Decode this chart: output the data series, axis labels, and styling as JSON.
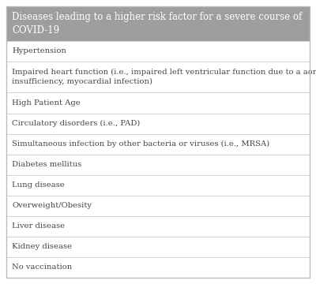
{
  "title": "Diseases leading to a higher risk factor for a severe course of\nCOVID-19",
  "title_bg": "#9e9e9e",
  "title_color": "#ffffff",
  "rows": [
    "Hypertension",
    "Impaired heart function (i.e., impaired left ventricular function due to a aortic valve\ninsufficiency, myocardial infection)",
    "High Patient Age",
    "Circulatory disorders (i.e., PAD)",
    "Simultaneous infection by other bacteria or viruses (i.e., MRSA)",
    "Diabetes mellitus",
    "Lung disease",
    "Overweight/Obesity",
    "Liver disease",
    "Kidney disease",
    "No vaccination"
  ],
  "row_bg": "#ffffff",
  "text_color": "#444444",
  "border_color": "#cccccc",
  "outer_border_color": "#bbbbbb",
  "font_size": 7.2,
  "title_font_size": 8.5,
  "fig_bg": "#ffffff"
}
